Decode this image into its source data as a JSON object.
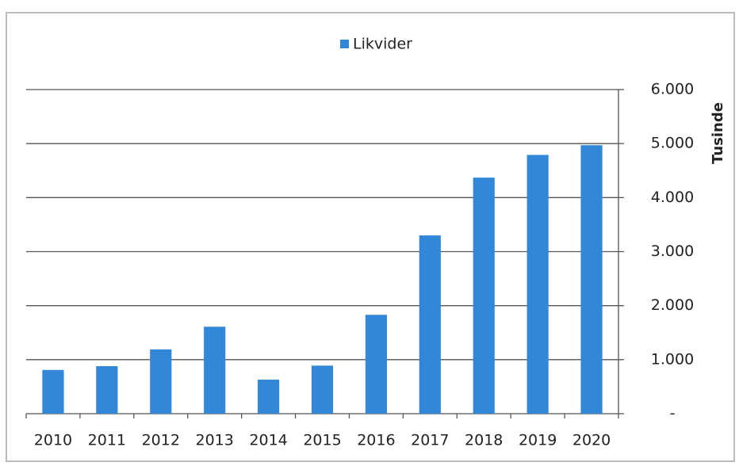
{
  "chart_data": {
    "type": "bar",
    "categories": [
      "2010",
      "2011",
      "2012",
      "2013",
      "2014",
      "2015",
      "2016",
      "2017",
      "2018",
      "2019",
      "2020"
    ],
    "series": [
      {
        "name": "Likvider",
        "color": "#3287d8",
        "values": [
          810,
          880,
          1190,
          1610,
          630,
          890,
          1830,
          3300,
          4370,
          4790,
          4970
        ]
      }
    ],
    "y_label": "Tusinde",
    "ylim": [
      0,
      6000
    ],
    "yticks": [
      {
        "value": 0,
        "label": "-"
      },
      {
        "value": 1000,
        "label": "1.000"
      },
      {
        "value": 2000,
        "label": "2.000"
      },
      {
        "value": 3000,
        "label": "3.000"
      },
      {
        "value": 4000,
        "label": "4.000"
      },
      {
        "value": 5000,
        "label": "5.000"
      },
      {
        "value": 6000,
        "label": "6.000"
      }
    ],
    "grid": true,
    "legend": "top"
  }
}
